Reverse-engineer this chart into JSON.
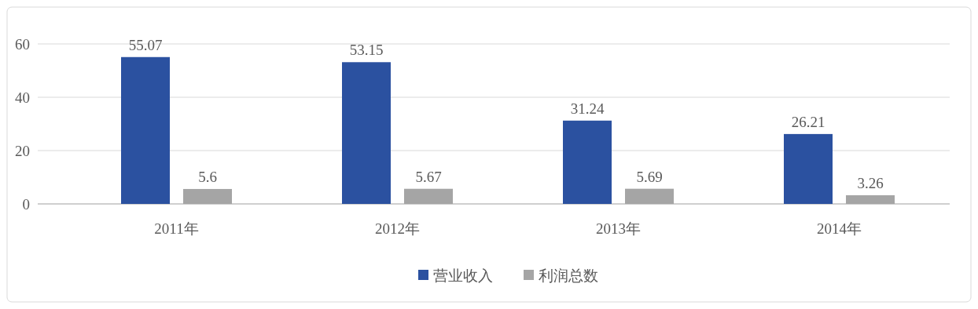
{
  "chart_data": {
    "type": "bar",
    "categories": [
      "2011年",
      "2012年",
      "2013年",
      "2014年"
    ],
    "series": [
      {
        "name": "营业收入",
        "color": "#2b51a0",
        "values": [
          55.07,
          53.15,
          31.24,
          26.21
        ]
      },
      {
        "name": "利润总数",
        "color": "#a5a5a5",
        "values": [
          5.6,
          5.67,
          5.69,
          3.26
        ]
      }
    ],
    "ylim": [
      0,
      60
    ],
    "yticks": [
      0,
      20,
      40,
      60
    ],
    "grid": "y",
    "legend": "bottom",
    "data_labels": true
  }
}
